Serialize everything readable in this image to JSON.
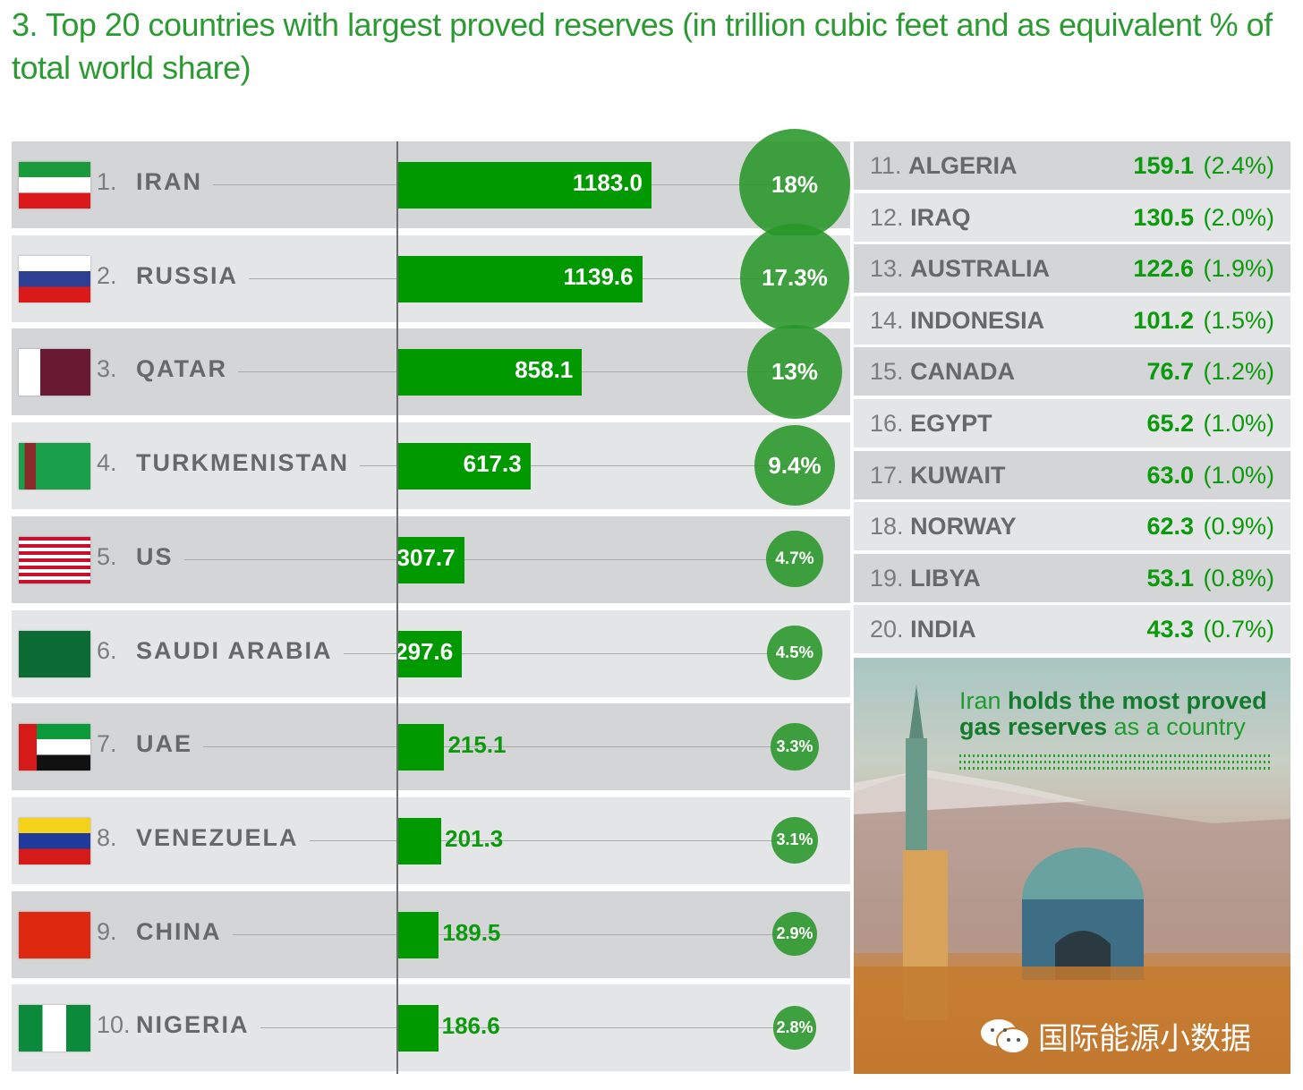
{
  "title": "3. Top 20 countries with largest proved reserves (in trillion cubic feet and as equivalent % of total world share)",
  "chart_data": {
    "type": "bar",
    "title": "3. Top 20 countries with largest proved reserves (in trillion cubic feet and as equivalent % of total world share)",
    "unit": "trillion cubic feet",
    "top10": [
      {
        "rank": "1.",
        "country": "IRAN",
        "value": 1183.0,
        "value_label": "1183.0",
        "share": 18,
        "share_label": "18%",
        "flag": "iran"
      },
      {
        "rank": "2.",
        "country": "RUSSIA",
        "value": 1139.6,
        "value_label": "1139.6",
        "share": 17.3,
        "share_label": "17.3%",
        "flag": "russia"
      },
      {
        "rank": "3.",
        "country": "QATAR",
        "value": 858.1,
        "value_label": "858.1",
        "share": 13,
        "share_label": "13%",
        "flag": "qatar"
      },
      {
        "rank": "4.",
        "country": "TURKMENISTAN",
        "value": 617.3,
        "value_label": "617.3",
        "share": 9.4,
        "share_label": "9.4%",
        "flag": "turkmenistan"
      },
      {
        "rank": "5.",
        "country": "US",
        "value": 307.7,
        "value_label": "307.7",
        "share": 4.7,
        "share_label": "4.7%",
        "flag": "us"
      },
      {
        "rank": "6.",
        "country": "SAUDI ARABIA",
        "value": 297.6,
        "value_label": "297.6",
        "share": 4.5,
        "share_label": "4.5%",
        "flag": "saudi"
      },
      {
        "rank": "7.",
        "country": "UAE",
        "value": 215.1,
        "value_label": "215.1",
        "share": 3.3,
        "share_label": "3.3%",
        "flag": "uae"
      },
      {
        "rank": "8.",
        "country": "VENEZUELA",
        "value": 201.3,
        "value_label": "201.3",
        "share": 3.1,
        "share_label": "3.1%",
        "flag": "venezuela"
      },
      {
        "rank": "9.",
        "country": "CHINA",
        "value": 189.5,
        "value_label": "189.5",
        "share": 2.9,
        "share_label": "2.9%",
        "flag": "china"
      },
      {
        "rank": "10.",
        "country": "NIGERIA",
        "value": 186.6,
        "value_label": "186.6",
        "share": 2.8,
        "share_label": "2.8%",
        "flag": "nigeria"
      }
    ],
    "others": [
      {
        "rank": "11.",
        "country": "ALGERIA",
        "value": "159.1",
        "share": "(2.4%)"
      },
      {
        "rank": "12.",
        "country": "IRAQ",
        "value": "130.5",
        "share": "(2.0%)"
      },
      {
        "rank": "13.",
        "country": "AUSTRALIA",
        "value": "122.6",
        "share": "(1.9%)"
      },
      {
        "rank": "14.",
        "country": "INDONESIA",
        "value": "101.2",
        "share": "(1.5%)"
      },
      {
        "rank": "15.",
        "country": "CANADA",
        "value": "76.7",
        "share": "(1.2%)"
      },
      {
        "rank": "16.",
        "country": "EGYPT",
        "value": "65.2",
        "share": "(1.0%)"
      },
      {
        "rank": "17.",
        "country": "KUWAIT",
        "value": "63.0",
        "share": "(1.0%)"
      },
      {
        "rank": "18.",
        "country": "NORWAY",
        "value": "62.3",
        "share": "(0.9%)"
      },
      {
        "rank": "19.",
        "country": "LIBYA",
        "value": "53.1",
        "share": "(0.8%)"
      },
      {
        "rank": "20.",
        "country": "INDIA",
        "value": "43.3",
        "share": "(0.7%)"
      }
    ]
  },
  "photo": {
    "caption_1": "Iran",
    "caption_2": "holds the most proved",
    "caption_3": "gas reserves",
    "caption_4": "as a country",
    "watermark": "国际能源小数据"
  },
  "colors": {
    "bar": "#009a00",
    "circle": "#2a962a",
    "title": "#2b9a32"
  }
}
